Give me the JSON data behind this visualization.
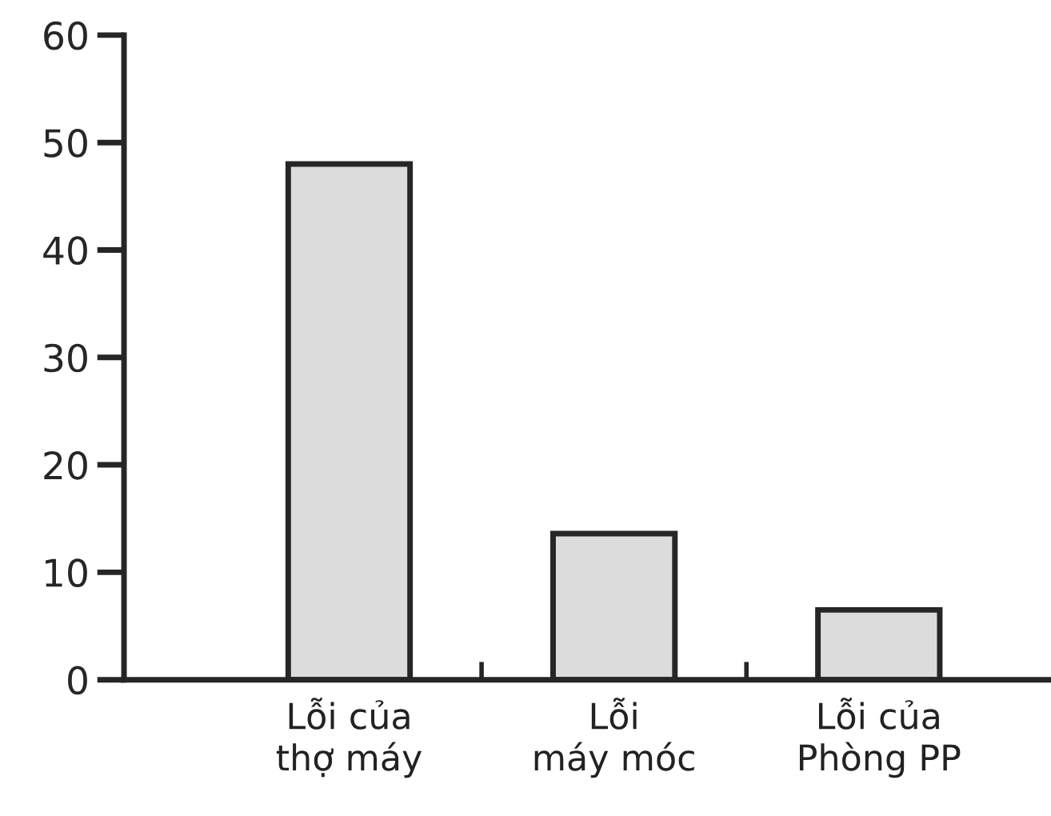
{
  "chart_data": {
    "type": "bar",
    "categories": [
      "Lỗi của\nthợ máy",
      "Lỗi\nmáy móc",
      "Lỗi của\nPhòng PP"
    ],
    "values": [
      48,
      13.6,
      6.5
    ],
    "color": "#dcdcdc",
    "ylim": [
      0,
      60
    ],
    "yticks": [
      0,
      10,
      20,
      30,
      40,
      50,
      60
    ],
    "grid": false
  }
}
